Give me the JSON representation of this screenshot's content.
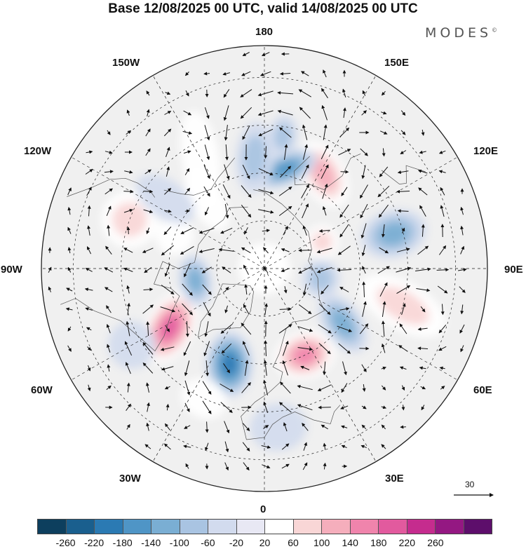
{
  "title": "Base 12/08/2025 00 UTC, valid 14/08/2025 00 UTC",
  "brand": {
    "name": "MODES",
    "mark": "©"
  },
  "longitude_labels": {
    "lon_180": "180",
    "lon_150e": "150E",
    "lon_120e": "120E",
    "lon_90e": "90E",
    "lon_60e": "60E",
    "lon_30e": "30E",
    "lon_0": "0",
    "lon_30w": "30W",
    "lon_60w": "60W",
    "lon_90w": "90W",
    "lon_120w": "120W",
    "lon_150w": "150W"
  },
  "reference_vector": {
    "label": "30"
  },
  "colorbar": {
    "colors": [
      "#0d3f5e",
      "#1a5f8e",
      "#2b7ab3",
      "#4f95c6",
      "#7aaed3",
      "#a9c4e2",
      "#d2dbee",
      "#e8e8f4",
      "#ffffff",
      "#f9d6d6",
      "#f5aebc",
      "#f084ac",
      "#e25a9e",
      "#c52c8e",
      "#941882",
      "#5d0e6b"
    ],
    "ticks": [
      "-260",
      "-220",
      "-180",
      "-140",
      "-100",
      "-60",
      "-20",
      "20",
      "60",
      "100",
      "140",
      "180",
      "220",
      "260"
    ]
  },
  "anomaly_cells": [
    {
      "lat": 55,
      "lon": -58,
      "value": 200,
      "rx": 1.0,
      "ry": 1.6,
      "rot": -30
    },
    {
      "lat": 58,
      "lon": -20,
      "value": -200,
      "rx": 1.0,
      "ry": 1.4,
      "rot": -20
    },
    {
      "lat": 60,
      "lon": 25,
      "value": 180,
      "rx": 1.3,
      "ry": 1.0,
      "rot": 10
    },
    {
      "lat": 55,
      "lon": 148,
      "value": 150,
      "rx": 1.5,
      "ry": 0.9,
      "rot": 30
    },
    {
      "lat": 58,
      "lon": 168,
      "value": -170,
      "rx": 1.4,
      "ry": 0.7,
      "rot": -35
    },
    {
      "lat": 48,
      "lon": 105,
      "value": -120,
      "rx": 1.0,
      "ry": 1.4,
      "rot": 0
    },
    {
      "lat": 45,
      "lon": 75,
      "value": 90,
      "rx": 1.0,
      "ry": 2.0,
      "rot": 15
    },
    {
      "lat": 60,
      "lon": 55,
      "value": -120,
      "rx": 0.8,
      "ry": 1.4,
      "rot": 20
    },
    {
      "lat": 68,
      "lon": -80,
      "value": -140,
      "rx": 1.1,
      "ry": 0.7,
      "rot": 0
    },
    {
      "lat": 45,
      "lon": -110,
      "value": 80,
      "rx": 1.2,
      "ry": 1.2,
      "rot": 0
    },
    {
      "lat": 50,
      "lon": -150,
      "value": 60,
      "rx": 0.8,
      "ry": 2.0,
      "rot": 20
    },
    {
      "lat": 55,
      "lon": -175,
      "value": -80,
      "rx": 0.8,
      "ry": 1.5,
      "rot": 10
    },
    {
      "lat": 48,
      "lon": 172,
      "value": -110,
      "rx": 0.6,
      "ry": 0.9,
      "rot": 0
    },
    {
      "lat": 62,
      "lon": -140,
      "value": 70,
      "rx": 0.7,
      "ry": 1.4,
      "rot": 10
    },
    {
      "lat": 70,
      "lon": 115,
      "value": 90,
      "rx": 0.7,
      "ry": 0.7,
      "rot": 0
    },
    {
      "lat": 72,
      "lon": 80,
      "value": -90,
      "rx": 0.8,
      "ry": 0.8,
      "rot": 0
    },
    {
      "lat": 40,
      "lon": 5,
      "value": -60,
      "rx": 1.2,
      "ry": 1.0,
      "rot": 0
    },
    {
      "lat": 45,
      "lon": -25,
      "value": 70,
      "rx": 1.0,
      "ry": 0.8,
      "rot": 0
    },
    {
      "lat": 42,
      "lon": -60,
      "value": -70,
      "rx": 1.0,
      "ry": 1.0,
      "rot": 0
    },
    {
      "lat": 60,
      "lon": -110,
      "value": 70,
      "rx": 0.8,
      "ry": 0.8,
      "rot": 0
    },
    {
      "lat": 52,
      "lon": -125,
      "value": -60,
      "rx": 0.8,
      "ry": 1.4,
      "rot": 0
    }
  ]
}
